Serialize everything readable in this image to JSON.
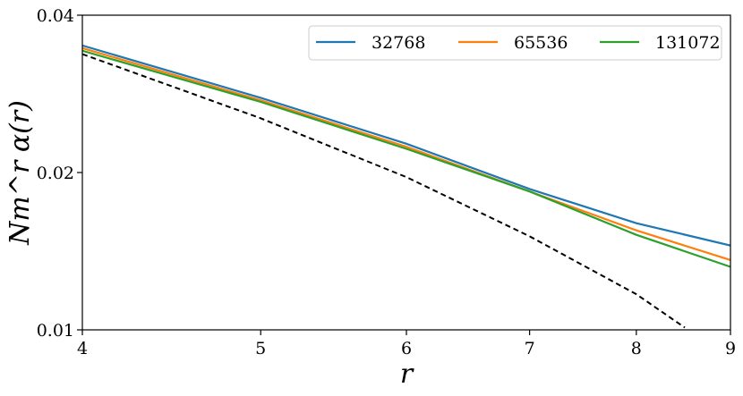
{
  "chart_data": {
    "type": "line",
    "xlabel": "r",
    "ylabel": "Nm^r α(r)",
    "x_scale": "log",
    "y_scale": "log",
    "xlim": [
      4,
      9
    ],
    "ylim": [
      0.01,
      0.04
    ],
    "x_ticks": [
      4,
      5,
      6,
      7,
      8,
      9
    ],
    "y_ticks": [
      0.01,
      0.02,
      0.04
    ],
    "y_tick_labels": [
      "0.01",
      "0.02",
      "0.04"
    ],
    "legend_position": "top-right",
    "grid": false,
    "series": [
      {
        "name": "32768",
        "color": "#1f77b4",
        "style": "solid",
        "x": [
          4,
          5,
          6,
          7,
          8,
          9
        ],
        "y": [
          0.035,
          0.0278,
          0.0227,
          0.0186,
          0.016,
          0.0145
        ]
      },
      {
        "name": "65536",
        "color": "#ff7f0e",
        "style": "solid",
        "x": [
          4,
          5,
          6,
          7,
          8,
          9
        ],
        "y": [
          0.0346,
          0.0275,
          0.0224,
          0.0184,
          0.0155,
          0.0136
        ]
      },
      {
        "name": "131072",
        "color": "#2ca02c",
        "style": "solid",
        "x": [
          4,
          5,
          6,
          7,
          8,
          9
        ],
        "y": [
          0.0342,
          0.0273,
          0.0222,
          0.0184,
          0.0152,
          0.0132
        ]
      },
      {
        "name": "",
        "color": "#000000",
        "style": "dashed",
        "x": [
          4,
          5,
          6,
          7,
          8,
          8.5
        ],
        "y": [
          0.0337,
          0.0254,
          0.0196,
          0.0151,
          0.0117,
          0.0101
        ]
      }
    ]
  }
}
